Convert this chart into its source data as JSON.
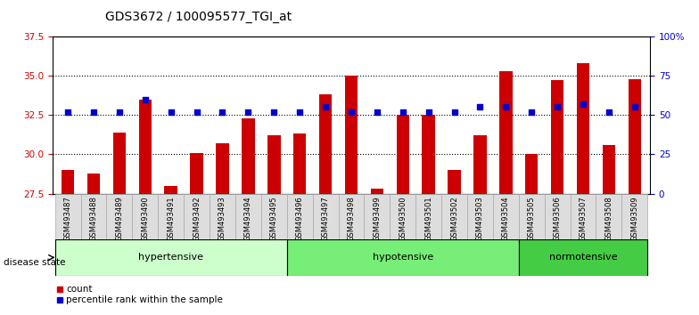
{
  "title": "GDS3672 / 100095577_TGI_at",
  "samples": [
    "GSM493487",
    "GSM493488",
    "GSM493489",
    "GSM493490",
    "GSM493491",
    "GSM493492",
    "GSM493493",
    "GSM493494",
    "GSM493495",
    "GSM493496",
    "GSM493497",
    "GSM493498",
    "GSM493499",
    "GSM493500",
    "GSM493501",
    "GSM493502",
    "GSM493503",
    "GSM493504",
    "GSM493505",
    "GSM493506",
    "GSM493507",
    "GSM493508",
    "GSM493509"
  ],
  "counts": [
    29.0,
    28.8,
    31.4,
    33.5,
    28.0,
    30.1,
    30.7,
    32.3,
    31.2,
    31.3,
    33.8,
    35.0,
    27.8,
    32.5,
    32.5,
    29.0,
    31.2,
    35.3,
    30.0,
    34.7,
    35.8,
    30.6,
    34.8
  ],
  "percentile_ranks": [
    52,
    52,
    52,
    60,
    52,
    52,
    52,
    52,
    52,
    52,
    55,
    52,
    52,
    52,
    52,
    52,
    55,
    55,
    52,
    55,
    57,
    52,
    55
  ],
  "groups": [
    {
      "label": "hypertensive",
      "start": 0,
      "end": 8,
      "color": "#ccffcc"
    },
    {
      "label": "hypotensive",
      "start": 9,
      "end": 17,
      "color": "#77ee77"
    },
    {
      "label": "normotensive",
      "start": 18,
      "end": 22,
      "color": "#44cc44"
    }
  ],
  "bar_color": "#cc0000",
  "dot_color": "#0000cc",
  "ylim_left": [
    27.5,
    37.5
  ],
  "ylim_right": [
    0,
    100
  ],
  "yticks_left": [
    27.5,
    30.0,
    32.5,
    35.0,
    37.5
  ],
  "yticks_right": [
    0,
    25,
    50,
    75,
    100
  ],
  "ytick_labels_right": [
    "0",
    "25",
    "50",
    "75",
    "100%"
  ],
  "grid_values": [
    30.0,
    32.5,
    35.0
  ],
  "bar_width": 0.5,
  "title_fontsize": 10,
  "legend_items": [
    {
      "color": "#cc0000",
      "marker": "s",
      "label": "count"
    },
    {
      "color": "#0000cc",
      "marker": "s",
      "label": "percentile rank within the sample"
    }
  ]
}
